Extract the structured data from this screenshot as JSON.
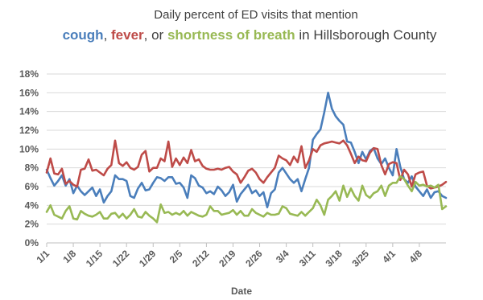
{
  "chart_data": {
    "type": "line",
    "title": {
      "line1": "Daily percent of ED visits that mention",
      "parts": [
        {
          "text": "cough",
          "bold": true,
          "color": "#4a7ebb"
        },
        {
          "text": ", ",
          "bold": false,
          "color": "#404040"
        },
        {
          "text": "fever",
          "bold": true,
          "color": "#be4b48"
        },
        {
          "text": ", or ",
          "bold": false,
          "color": "#404040"
        },
        {
          "text": "shortness of breath",
          "bold": true,
          "color": "#98b954"
        },
        {
          "text": " in Hillsborough County",
          "bold": false,
          "color": "#404040"
        }
      ]
    },
    "xlabel": "Date",
    "ylabel": "",
    "ylim": [
      0,
      18
    ],
    "y_ticks": [
      0,
      2,
      4,
      6,
      8,
      10,
      12,
      14,
      16,
      18
    ],
    "y_tick_labels": [
      "0%",
      "2%",
      "4%",
      "6%",
      "8%",
      "10%",
      "12%",
      "14%",
      "16%",
      "18%"
    ],
    "x_tick_labels": [
      "1/1",
      "1/8",
      "1/15",
      "1/22",
      "1/29",
      "2/5",
      "2/12",
      "2/19",
      "2/26",
      "3/4",
      "3/11",
      "3/18",
      "3/25",
      "4/1",
      "4/8"
    ],
    "x_tick_days": [
      0,
      7,
      14,
      21,
      28,
      35,
      42,
      49,
      56,
      63,
      70,
      77,
      84,
      91,
      98
    ],
    "x_last_day": 105,
    "grid": true,
    "legend": "none",
    "series": [
      {
        "name": "cough",
        "color": "#4a7ebb",
        "x": [
          0,
          1,
          2,
          3,
          4,
          5,
          6,
          7,
          8,
          9,
          10,
          11,
          12,
          13,
          14,
          15,
          16,
          17,
          18,
          19,
          20,
          21,
          22,
          23,
          24,
          25,
          26,
          27,
          28,
          29,
          30,
          31,
          32,
          33,
          34,
          35,
          36,
          37,
          38,
          39,
          40,
          41,
          42,
          43,
          44,
          45,
          46,
          47,
          48,
          49,
          50,
          51,
          52,
          53,
          54,
          55,
          56,
          57,
          58,
          59,
          60,
          61,
          62,
          63,
          64,
          65,
          66,
          67,
          68,
          69,
          70,
          71,
          72,
          73,
          74,
          75,
          76,
          77,
          78,
          79,
          80,
          81,
          82,
          83,
          84,
          85,
          86,
          87,
          88,
          89,
          90,
          91,
          92,
          93,
          94,
          95,
          96,
          97,
          98,
          99,
          100,
          101,
          102,
          103,
          104,
          105
        ],
        "y": [
          7.8,
          6.9,
          6.1,
          6.6,
          7.2,
          6.1,
          6.8,
          5.3,
          6.1,
          5.5,
          5.1,
          5.5,
          5.9,
          5.0,
          5.7,
          4.3,
          5.0,
          5.5,
          7.2,
          6.8,
          6.8,
          6.6,
          5.0,
          4.8,
          5.8,
          6.4,
          5.6,
          5.7,
          6.4,
          7.0,
          6.9,
          6.6,
          7.0,
          7.0,
          6.3,
          6.4,
          5.9,
          4.8,
          7.2,
          6.9,
          6.1,
          5.9,
          5.3,
          5.5,
          5.2,
          6.0,
          5.6,
          5.0,
          5.4,
          6.2,
          4.4,
          5.2,
          5.7,
          6.2,
          5.3,
          5.6,
          5.0,
          5.4,
          3.8,
          5.3,
          5.7,
          7.5,
          8.0,
          7.4,
          6.8,
          6.4,
          6.8,
          5.5,
          6.8,
          8.0,
          11.0,
          11.6,
          12.1,
          13.9,
          16.0,
          14.3,
          13.5,
          13.0,
          12.6,
          10.8,
          10.7,
          9.7,
          8.5,
          9.7,
          8.9,
          9.8,
          10.1,
          9.0,
          8.4,
          9.0,
          8.0,
          7.2,
          10.0,
          8.1,
          6.8,
          6.4,
          7.1,
          6.0,
          5.5,
          5.0,
          5.7,
          4.8,
          5.4,
          5.5,
          5.0,
          4.8
        ]
      },
      {
        "name": "fever",
        "color": "#be4b48",
        "x": [
          0,
          1,
          2,
          3,
          4,
          5,
          6,
          7,
          8,
          9,
          10,
          11,
          12,
          13,
          14,
          15,
          16,
          17,
          18,
          19,
          20,
          21,
          22,
          23,
          24,
          25,
          26,
          27,
          28,
          29,
          30,
          31,
          32,
          33,
          34,
          35,
          36,
          37,
          38,
          39,
          40,
          41,
          42,
          43,
          44,
          45,
          46,
          47,
          48,
          49,
          50,
          51,
          52,
          53,
          54,
          55,
          56,
          57,
          58,
          59,
          60,
          61,
          62,
          63,
          64,
          65,
          66,
          67,
          68,
          69,
          70,
          71,
          72,
          73,
          74,
          75,
          76,
          77,
          78,
          79,
          80,
          81,
          82,
          83,
          84,
          85,
          86,
          87,
          88,
          89,
          90,
          91,
          92,
          93,
          94,
          95,
          96,
          97,
          98,
          99,
          100,
          101,
          102,
          103,
          104,
          105
        ],
        "y": [
          7.5,
          9.0,
          7.4,
          7.3,
          7.9,
          6.3,
          6.6,
          6.2,
          6.0,
          7.8,
          7.9,
          8.9,
          7.7,
          7.8,
          7.5,
          7.2,
          7.9,
          8.3,
          10.9,
          8.5,
          8.2,
          8.6,
          8.0,
          7.8,
          8.1,
          9.4,
          9.8,
          7.6,
          8.0,
          8.0,
          9.0,
          8.7,
          10.8,
          8.1,
          9.0,
          8.3,
          9.1,
          8.5,
          9.9,
          8.7,
          8.9,
          8.2,
          7.9,
          7.8,
          7.8,
          7.9,
          7.8,
          8.0,
          8.1,
          7.6,
          7.3,
          6.4,
          7.0,
          7.7,
          7.9,
          7.5,
          6.8,
          6.4,
          7.0,
          7.5,
          8.0,
          9.3,
          9.0,
          8.8,
          8.3,
          9.2,
          8.6,
          10.3,
          8.0,
          8.8,
          10.0,
          9.7,
          10.4,
          10.6,
          10.7,
          10.8,
          10.7,
          10.6,
          10.9,
          10.4,
          9.5,
          8.5,
          9.2,
          8.8,
          8.7,
          9.6,
          10.1,
          10.0,
          8.3,
          7.3,
          8.4,
          8.6,
          8.5,
          6.7,
          7.8,
          7.3,
          6.0,
          7.3,
          7.5,
          7.6,
          6.1,
          5.8,
          5.9,
          6.0,
          6.2,
          6.5
        ]
      },
      {
        "name": "shortness of breath",
        "color": "#98b954",
        "x": [
          0,
          1,
          2,
          3,
          4,
          5,
          6,
          7,
          8,
          9,
          10,
          11,
          12,
          13,
          14,
          15,
          16,
          17,
          18,
          19,
          20,
          21,
          22,
          23,
          24,
          25,
          26,
          27,
          28,
          29,
          30,
          31,
          32,
          33,
          34,
          35,
          36,
          37,
          38,
          39,
          40,
          41,
          42,
          43,
          44,
          45,
          46,
          47,
          48,
          49,
          50,
          51,
          52,
          53,
          54,
          55,
          56,
          57,
          58,
          59,
          60,
          61,
          62,
          63,
          64,
          65,
          66,
          67,
          68,
          69,
          70,
          71,
          72,
          73,
          74,
          75,
          76,
          77,
          78,
          79,
          80,
          81,
          82,
          83,
          84,
          85,
          86,
          87,
          88,
          89,
          90,
          91,
          92,
          93,
          94,
          95,
          96,
          97,
          98,
          99,
          100,
          101,
          102,
          103,
          104,
          105
        ],
        "y": [
          3.3,
          4.0,
          3.0,
          2.8,
          2.6,
          3.4,
          3.9,
          2.6,
          2.5,
          3.4,
          3.1,
          2.9,
          2.8,
          3.0,
          3.3,
          2.6,
          2.6,
          3.1,
          3.2,
          2.7,
          3.1,
          2.6,
          3.0,
          3.6,
          2.8,
          2.7,
          3.3,
          2.9,
          2.6,
          2.2,
          4.1,
          3.2,
          3.3,
          3.0,
          3.2,
          3.0,
          3.4,
          2.9,
          3.3,
          3.1,
          2.9,
          2.8,
          3.0,
          3.9,
          3.4,
          3.4,
          3.0,
          3.1,
          3.2,
          3.5,
          3.0,
          3.4,
          2.9,
          2.9,
          3.6,
          3.2,
          3.0,
          2.8,
          3.2,
          3.0,
          3.0,
          3.1,
          3.9,
          3.7,
          3.1,
          3.0,
          2.9,
          3.3,
          2.9,
          3.3,
          3.7,
          4.6,
          4.0,
          3.0,
          4.6,
          5.0,
          5.5,
          4.5,
          6.1,
          4.9,
          5.8,
          5.0,
          4.5,
          6.1,
          5.1,
          4.8,
          5.3,
          5.5,
          6.1,
          5.0,
          6.1,
          6.4,
          6.4,
          7.1,
          6.8,
          6.1,
          5.5,
          6.5,
          6.1,
          6.2,
          6.0,
          6.1,
          5.9,
          6.2,
          3.6,
          3.9
        ]
      }
    ]
  }
}
